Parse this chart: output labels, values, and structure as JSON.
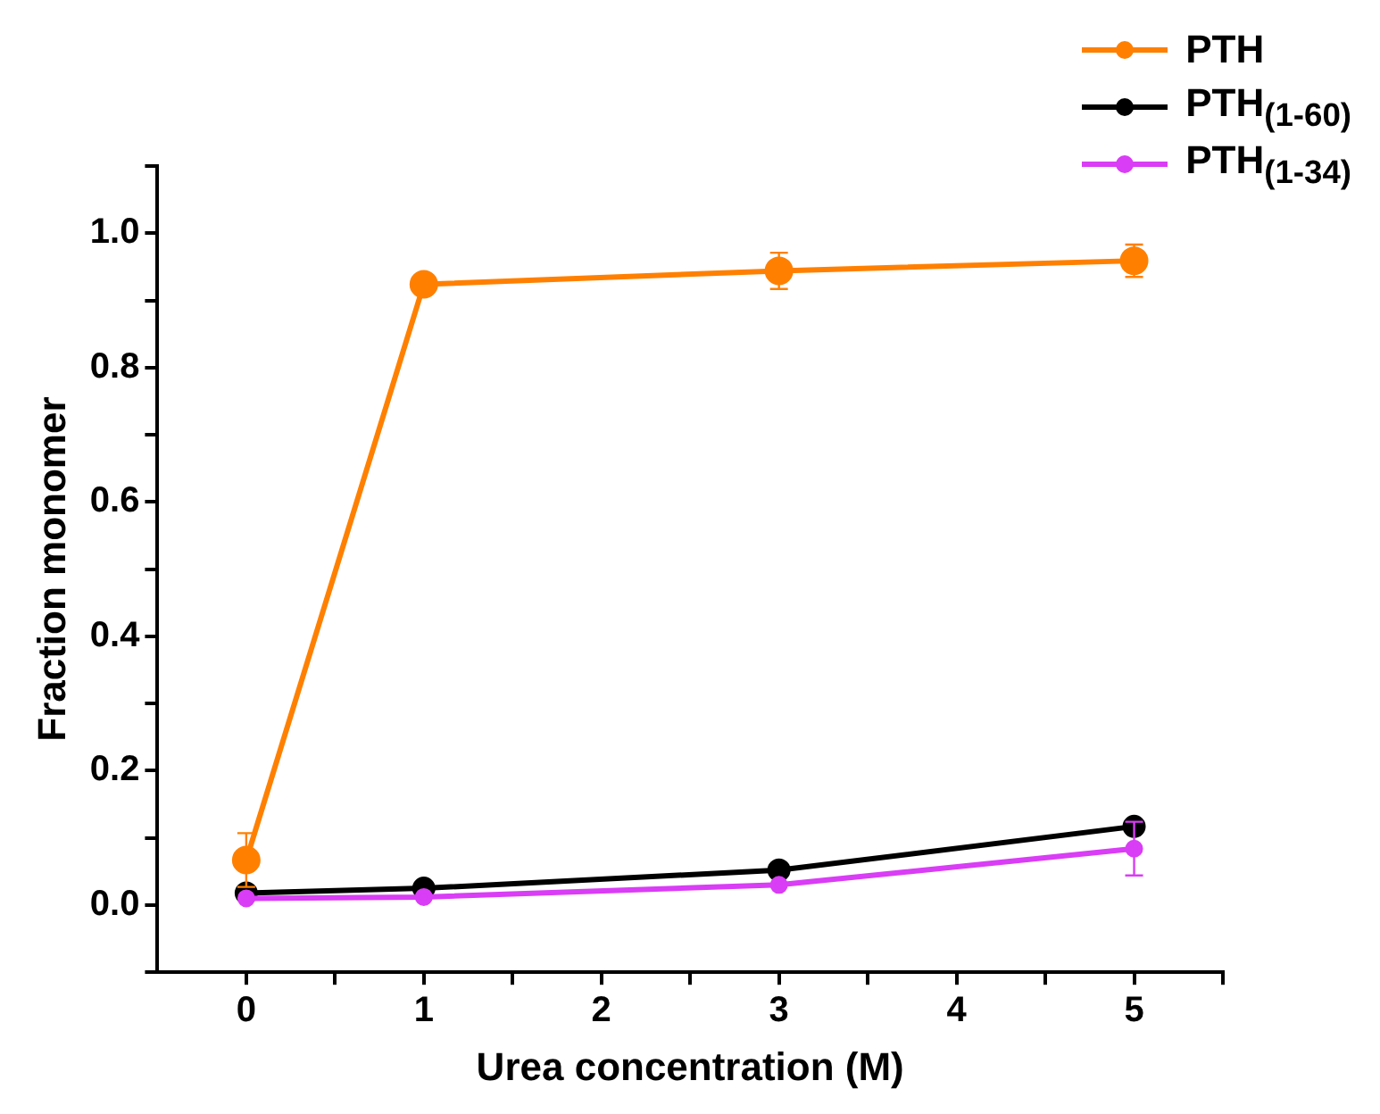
{
  "chart_data": {
    "type": "line",
    "xlabel": "Urea concentration (M)",
    "ylabel": "Fraction monomer",
    "x": [
      0,
      1,
      3,
      5
    ],
    "series": [
      {
        "name": "PTH",
        "color": "#ff8000",
        "values": [
          0.067,
          0.924,
          0.944,
          0.959
        ],
        "errors": [
          0.04,
          null,
          0.027,
          0.024
        ]
      },
      {
        "name": "PTH$_{(1-60)}$",
        "color": "#000000",
        "values": [
          0.018,
          0.025,
          0.052,
          0.117
        ]
      },
      {
        "name": "PTH$_{(1-34)}$",
        "color": "#d93df5",
        "values": [
          0.01,
          0.012,
          0.03,
          0.084
        ],
        "errors": [
          null,
          null,
          null,
          0.04
        ]
      }
    ],
    "xlim": [
      -0.5,
      5.5
    ],
    "xticks": [
      0,
      {
        "value": 0.5,
        "label": null
      },
      1,
      {
        "value": 1.5,
        "label": null
      },
      2,
      {
        "value": 2.5,
        "label": null
      },
      3,
      {
        "value": 3.5,
        "label": null
      },
      4,
      {
        "value": 4.5,
        "label": null
      },
      5,
      {
        "value": 5.5,
        "label": null
      }
    ],
    "ylim": [
      -0.1,
      1.1
    ],
    "yticks": [
      {
        "value": -0.1,
        "label": null
      },
      {
        "value": 0,
        "label": "0.0"
      },
      {
        "value": 0.1,
        "label": null
      },
      0.2,
      {
        "value": 0.3,
        "label": null
      },
      0.4,
      {
        "value": 0.5,
        "label": null
      },
      0.6,
      {
        "value": 0.7,
        "label": null
      },
      0.8,
      {
        "value": 0.9,
        "label": null
      },
      {
        "value": 1,
        "label": "1.0"
      },
      {
        "value": 1.1,
        "label": null
      }
    ],
    "grid": false,
    "legend": "top right",
    "marker": "circle",
    "line_style": "solid"
  }
}
